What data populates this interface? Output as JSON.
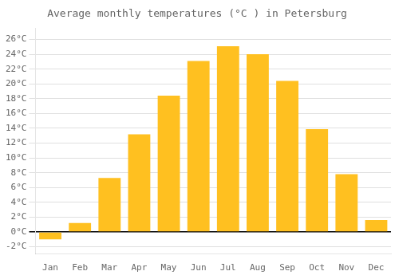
{
  "chart_data": {
    "type": "bar",
    "title": "Average monthly temperatures (°C ) in Petersburg",
    "categories": [
      "Jan",
      "Feb",
      "Mar",
      "Apr",
      "May",
      "Jun",
      "Jul",
      "Aug",
      "Sep",
      "Oct",
      "Nov",
      "Dec"
    ],
    "values": [
      -1,
      1.2,
      7.3,
      13.2,
      18.4,
      23.1,
      25.1,
      24.0,
      20.4,
      13.9,
      7.8,
      1.6
    ],
    "color": "#FFC020",
    "ylim": [
      -3.0,
      27.5
    ],
    "yticks": [
      {
        "value": -2,
        "label": "-2°C"
      },
      {
        "value": 0,
        "label": "0°C"
      },
      {
        "value": 2,
        "label": "2°C"
      },
      {
        "value": 4,
        "label": "4°C"
      },
      {
        "value": 6,
        "label": "6°C"
      },
      {
        "value": 8,
        "label": "8°C"
      },
      {
        "value": 10,
        "label": "10°C"
      },
      {
        "value": 12,
        "label": "12°C"
      },
      {
        "value": 14,
        "label": "14°C"
      },
      {
        "value": 16,
        "label": "16°C"
      },
      {
        "value": 18,
        "label": "18°C"
      },
      {
        "value": 20,
        "label": "20°C"
      },
      {
        "value": 22,
        "label": "22°C"
      },
      {
        "value": 24,
        "label": "24°C"
      },
      {
        "value": 26,
        "label": "26°C"
      }
    ],
    "grid": true
  }
}
